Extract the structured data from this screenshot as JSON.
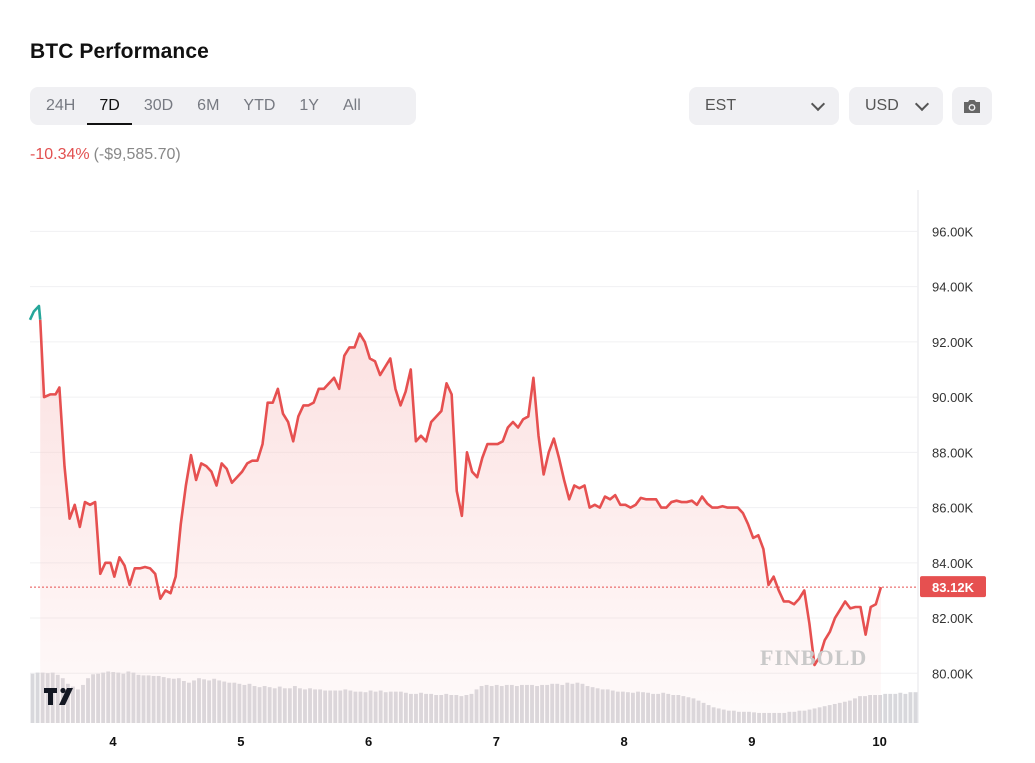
{
  "header": {
    "title": "BTC Performance",
    "tabs": [
      "24H",
      "7D",
      "30D",
      "6M",
      "YTD",
      "1Y",
      "All"
    ],
    "active_tab": "7D",
    "timezone": "EST",
    "currency": "USD",
    "change_percent": "-10.34%",
    "change_amount": "(-$9,585.70)"
  },
  "chart_data": {
    "type": "line",
    "x_ticks": [
      "4",
      "5",
      "6",
      "7",
      "8",
      "9",
      "10"
    ],
    "y_ticks": [
      "96.00K",
      "94.00K",
      "92.00K",
      "90.00K",
      "88.00K",
      "86.00K",
      "84.00K",
      "82.00K",
      "80.00K"
    ],
    "ylim": [
      78.2,
      97.5
    ],
    "xlim": [
      3.35,
      10.3
    ],
    "current_price_label": "83.12K",
    "current_price": 83.12,
    "watermark": "FINBOLD",
    "colors": {
      "line": "#e65050",
      "up_line": "#26a69a",
      "fill": "#f9c8c8",
      "volume": "#d8d8dc"
    },
    "series": [
      {
        "values": [
          [
            3.35,
            92.8
          ],
          [
            3.38,
            93.1
          ],
          [
            3.42,
            93.3
          ],
          [
            3.43,
            92.8
          ],
          [
            3.46,
            90.0
          ],
          [
            3.51,
            90.1
          ],
          [
            3.55,
            90.1
          ],
          [
            3.58,
            90.35
          ],
          [
            3.62,
            87.5
          ],
          [
            3.66,
            85.6
          ],
          [
            3.7,
            86.1
          ],
          [
            3.74,
            85.3
          ],
          [
            3.78,
            86.2
          ],
          [
            3.82,
            86.1
          ],
          [
            3.86,
            86.2
          ],
          [
            3.9,
            83.6
          ],
          [
            3.94,
            84.0
          ],
          [
            3.98,
            84.0
          ],
          [
            4.01,
            83.5
          ],
          [
            4.05,
            84.2
          ],
          [
            4.09,
            83.9
          ],
          [
            4.13,
            83.2
          ],
          [
            4.17,
            83.8
          ],
          [
            4.21,
            83.8
          ],
          [
            4.25,
            83.85
          ],
          [
            4.29,
            83.8
          ],
          [
            4.33,
            83.6
          ],
          [
            4.37,
            82.7
          ],
          [
            4.41,
            83.0
          ],
          [
            4.45,
            82.9
          ],
          [
            4.49,
            83.5
          ],
          [
            4.53,
            85.4
          ],
          [
            4.57,
            86.8
          ],
          [
            4.61,
            87.9
          ],
          [
            4.65,
            87.0
          ],
          [
            4.69,
            87.6
          ],
          [
            4.73,
            87.5
          ],
          [
            4.77,
            87.3
          ],
          [
            4.81,
            86.8
          ],
          [
            4.85,
            87.6
          ],
          [
            4.89,
            87.4
          ],
          [
            4.93,
            86.9
          ],
          [
            4.97,
            87.1
          ],
          [
            5.01,
            87.3
          ],
          [
            5.05,
            87.6
          ],
          [
            5.09,
            87.7
          ],
          [
            5.13,
            87.7
          ],
          [
            5.17,
            88.3
          ],
          [
            5.21,
            89.8
          ],
          [
            5.25,
            89.8
          ],
          [
            5.29,
            90.3
          ],
          [
            5.33,
            89.4
          ],
          [
            5.37,
            89.1
          ],
          [
            5.41,
            88.4
          ],
          [
            5.45,
            89.3
          ],
          [
            5.49,
            89.7
          ],
          [
            5.53,
            89.7
          ],
          [
            5.57,
            89.8
          ],
          [
            5.61,
            90.3
          ],
          [
            5.65,
            90.3
          ],
          [
            5.69,
            90.5
          ],
          [
            5.73,
            90.7
          ],
          [
            5.77,
            90.3
          ],
          [
            5.81,
            91.5
          ],
          [
            5.85,
            91.8
          ],
          [
            5.89,
            91.8
          ],
          [
            5.93,
            92.3
          ],
          [
            5.97,
            92.0
          ],
          [
            6.01,
            91.4
          ],
          [
            6.05,
            91.3
          ],
          [
            6.09,
            90.8
          ],
          [
            6.13,
            91.1
          ],
          [
            6.17,
            91.4
          ],
          [
            6.21,
            90.3
          ],
          [
            6.25,
            89.7
          ],
          [
            6.29,
            90.2
          ],
          [
            6.33,
            91.0
          ],
          [
            6.37,
            88.4
          ],
          [
            6.41,
            88.6
          ],
          [
            6.45,
            88.4
          ],
          [
            6.49,
            89.1
          ],
          [
            6.53,
            89.3
          ],
          [
            6.57,
            89.5
          ],
          [
            6.61,
            90.5
          ],
          [
            6.65,
            90.1
          ],
          [
            6.69,
            86.6
          ],
          [
            6.73,
            85.7
          ],
          [
            6.77,
            88.0
          ],
          [
            6.81,
            87.3
          ],
          [
            6.85,
            87.1
          ],
          [
            6.89,
            87.8
          ],
          [
            6.93,
            88.3
          ],
          [
            6.97,
            88.3
          ],
          [
            7.01,
            88.3
          ],
          [
            7.05,
            88.4
          ],
          [
            7.09,
            88.9
          ],
          [
            7.13,
            89.1
          ],
          [
            7.17,
            88.9
          ],
          [
            7.21,
            89.2
          ],
          [
            7.25,
            89.3
          ],
          [
            7.29,
            90.7
          ],
          [
            7.33,
            88.6
          ],
          [
            7.37,
            87.2
          ],
          [
            7.41,
            88.0
          ],
          [
            7.45,
            88.5
          ],
          [
            7.49,
            87.8
          ],
          [
            7.53,
            87.0
          ],
          [
            7.57,
            86.3
          ],
          [
            7.61,
            86.8
          ],
          [
            7.65,
            86.7
          ],
          [
            7.69,
            86.8
          ],
          [
            7.73,
            86.0
          ],
          [
            7.77,
            86.1
          ],
          [
            7.81,
            86.0
          ],
          [
            7.85,
            86.4
          ],
          [
            7.89,
            86.3
          ],
          [
            7.93,
            86.45
          ],
          [
            7.97,
            86.1
          ],
          [
            8.01,
            86.1
          ],
          [
            8.05,
            86.0
          ],
          [
            8.09,
            86.1
          ],
          [
            8.13,
            86.35
          ],
          [
            8.17,
            86.3
          ],
          [
            8.21,
            86.3
          ],
          [
            8.25,
            86.3
          ],
          [
            8.29,
            86.0
          ],
          [
            8.33,
            86.0
          ],
          [
            8.37,
            86.2
          ],
          [
            8.41,
            86.25
          ],
          [
            8.45,
            86.2
          ],
          [
            8.49,
            86.2
          ],
          [
            8.53,
            86.25
          ],
          [
            8.57,
            86.1
          ],
          [
            8.61,
            86.4
          ],
          [
            8.65,
            86.15
          ],
          [
            8.69,
            86.0
          ],
          [
            8.73,
            86.0
          ],
          [
            8.77,
            86.05
          ],
          [
            8.81,
            86.0
          ],
          [
            8.85,
            86.0
          ],
          [
            8.89,
            86.0
          ],
          [
            8.93,
            85.8
          ],
          [
            8.97,
            85.4
          ],
          [
            9.01,
            84.9
          ],
          [
            9.05,
            85.0
          ],
          [
            9.09,
            84.5
          ],
          [
            9.13,
            83.2
          ],
          [
            9.17,
            83.5
          ],
          [
            9.21,
            83.0
          ],
          [
            9.25,
            82.6
          ],
          [
            9.29,
            82.6
          ],
          [
            9.33,
            82.5
          ],
          [
            9.37,
            82.7
          ],
          [
            9.41,
            83.0
          ],
          [
            9.45,
            81.8
          ],
          [
            9.49,
            80.3
          ],
          [
            9.53,
            80.6
          ],
          [
            9.57,
            81.2
          ],
          [
            9.61,
            81.5
          ],
          [
            9.65,
            82.0
          ],
          [
            9.69,
            82.3
          ],
          [
            9.73,
            82.6
          ],
          [
            9.77,
            82.35
          ],
          [
            9.81,
            82.4
          ],
          [
            9.85,
            82.4
          ],
          [
            9.89,
            81.4
          ],
          [
            9.93,
            82.4
          ],
          [
            9.97,
            82.5
          ],
          [
            10.01,
            83.12
          ]
        ]
      }
    ],
    "volume": [
      0.88,
      0.9,
      0.9,
      0.89,
      0.9,
      0.86,
      0.8,
      0.7,
      0.65,
      0.6,
      0.68,
      0.8,
      0.87,
      0.88,
      0.9,
      0.92,
      0.91,
      0.9,
      0.88,
      0.92,
      0.9,
      0.86,
      0.85,
      0.85,
      0.84,
      0.84,
      0.82,
      0.8,
      0.79,
      0.8,
      0.75,
      0.72,
      0.76,
      0.8,
      0.78,
      0.76,
      0.79,
      0.76,
      0.74,
      0.72,
      0.72,
      0.7,
      0.68,
      0.7,
      0.66,
      0.64,
      0.66,
      0.64,
      0.62,
      0.65,
      0.62,
      0.62,
      0.66,
      0.62,
      0.6,
      0.62,
      0.6,
      0.6,
      0.58,
      0.58,
      0.58,
      0.58,
      0.6,
      0.58,
      0.56,
      0.56,
      0.55,
      0.58,
      0.56,
      0.58,
      0.55,
      0.56,
      0.56,
      0.56,
      0.54,
      0.52,
      0.52,
      0.54,
      0.52,
      0.52,
      0.5,
      0.5,
      0.52,
      0.5,
      0.5,
      0.48,
      0.5,
      0.52,
      0.6,
      0.66,
      0.68,
      0.66,
      0.68,
      0.66,
      0.68,
      0.68,
      0.66,
      0.68,
      0.68,
      0.68,
      0.66,
      0.68,
      0.68,
      0.7,
      0.7,
      0.68,
      0.72,
      0.7,
      0.72,
      0.7,
      0.66,
      0.64,
      0.62,
      0.6,
      0.6,
      0.58,
      0.56,
      0.56,
      0.55,
      0.54,
      0.56,
      0.55,
      0.54,
      0.52,
      0.52,
      0.54,
      0.52,
      0.5,
      0.5,
      0.48,
      0.46,
      0.44,
      0.4,
      0.36,
      0.32,
      0.28,
      0.26,
      0.24,
      0.22,
      0.22,
      0.2,
      0.2,
      0.2,
      0.19,
      0.18,
      0.18,
      0.18,
      0.18,
      0.18,
      0.18,
      0.2,
      0.2,
      0.22,
      0.22,
      0.24,
      0.26,
      0.28,
      0.3,
      0.32,
      0.34,
      0.36,
      0.38,
      0.4,
      0.44,
      0.48,
      0.48,
      0.5,
      0.5,
      0.5,
      0.52,
      0.52,
      0.52,
      0.54,
      0.52,
      0.55,
      0.55
    ]
  }
}
